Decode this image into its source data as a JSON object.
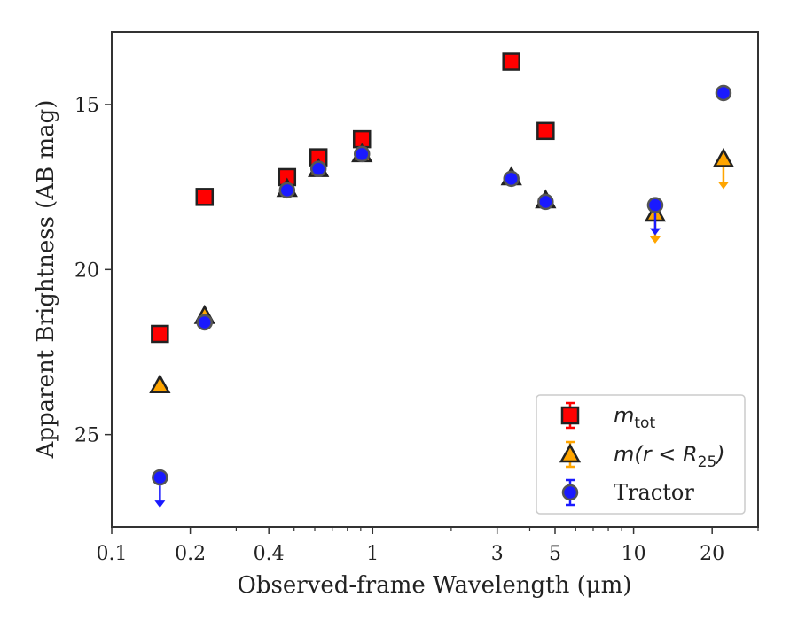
{
  "chart_data": {
    "type": "scatter",
    "title": "",
    "xlabel": "Observed-frame Wavelength (μm)",
    "ylabel": "Apparent Brightness (AB mag)",
    "xscale": "log",
    "xlim": [
      0.1,
      30
    ],
    "ylim": [
      27.8,
      12.8
    ],
    "y_inverted": true,
    "x_ticks": [
      0.1,
      0.2,
      0.4,
      1,
      3,
      5,
      10,
      20
    ],
    "x_tick_labels": [
      "0.1",
      "0.2",
      "0.4",
      "1",
      "3",
      "5",
      "10",
      "20"
    ],
    "y_ticks": [
      15,
      20,
      25
    ],
    "y_tick_labels": [
      "15",
      "20",
      "25"
    ],
    "grid": false,
    "legend_position": "lower-right",
    "series": [
      {
        "name": "m_tot",
        "legend_main": "m",
        "legend_sub": "tot",
        "marker": "square",
        "color": "#ff0000",
        "edge": "#222222",
        "x": [
          0.153,
          0.227,
          0.47,
          0.62,
          0.91,
          3.4,
          4.6
        ],
        "y": [
          21.95,
          17.8,
          17.2,
          16.6,
          16.05,
          13.7,
          15.8
        ],
        "upper_limit": [
          false,
          false,
          false,
          false,
          false,
          false,
          false
        ]
      },
      {
        "name": "m(r < R25)",
        "legend_main": "m(r < R",
        "legend_sub": "25",
        "legend_end": ")",
        "marker": "triangle",
        "color": "#ffa500",
        "edge": "#222222",
        "x": [
          0.153,
          0.227,
          0.47,
          0.62,
          0.91,
          3.4,
          4.6,
          12.1,
          22.1
        ],
        "y": [
          23.5,
          21.4,
          17.55,
          16.95,
          16.5,
          17.2,
          17.9,
          18.3,
          16.65
        ],
        "upper_limit": [
          false,
          false,
          false,
          false,
          false,
          false,
          false,
          true,
          true
        ]
      },
      {
        "name": "Tractor",
        "marker": "circle",
        "color": "#1a1aff",
        "edge": "#555555",
        "x": [
          0.153,
          0.227,
          0.47,
          0.62,
          0.91,
          3.4,
          4.6,
          12.1,
          22.1
        ],
        "y": [
          26.3,
          21.6,
          17.6,
          16.95,
          16.5,
          17.25,
          17.95,
          18.05,
          14.65
        ],
        "upper_limit": [
          true,
          false,
          false,
          false,
          false,
          false,
          false,
          true,
          false
        ]
      }
    ]
  }
}
